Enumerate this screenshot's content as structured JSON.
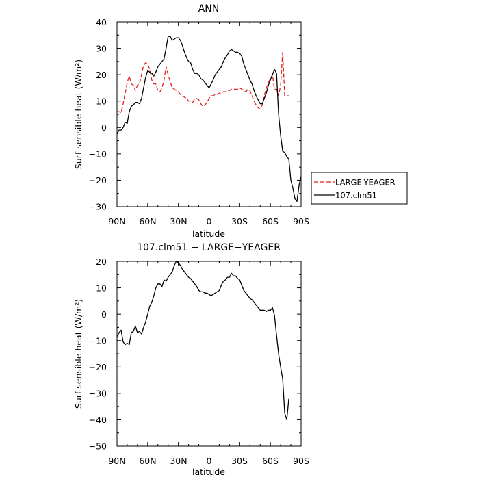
{
  "colors": {
    "large_yeager": "#e32020",
    "clm51": "#000000",
    "axis": "#000000"
  },
  "chart_data": [
    {
      "type": "line",
      "title": "ANN",
      "xlabel": "latitude",
      "ylabel": "Surf sensible heat (W/m²)",
      "xlim": [
        -90,
        90
      ],
      "ylim": [
        -30,
        40
      ],
      "x_ticks": [
        -90,
        -60,
        -30,
        0,
        30,
        60,
        90
      ],
      "x_tick_labels": [
        "90N",
        "60N",
        "30N",
        "0",
        "30S",
        "60S",
        "90S"
      ],
      "y_ticks": [
        -30,
        -20,
        -10,
        0,
        10,
        20,
        30,
        40
      ],
      "y_tick_labels": [
        "−30",
        "−20",
        "−10",
        "0",
        "10",
        "20",
        "30",
        "40"
      ],
      "legend_position": "right-middle",
      "series": [
        {
          "name": "LARGE-YEAGER",
          "style": "dashed",
          "color": "#e32020",
          "x": [
            -90,
            -88,
            -86,
            -84,
            -82,
            -80,
            -78,
            -76,
            -74,
            -72,
            -70,
            -68,
            -66,
            -64,
            -62,
            -60,
            -58,
            -56,
            -54,
            -52,
            -50,
            -48,
            -46,
            -44,
            -42,
            -40,
            -38,
            -36,
            -34,
            -32,
            -30,
            -28,
            -26,
            -24,
            -22,
            -20,
            -18,
            -16,
            -14,
            -12,
            -10,
            -8,
            -6,
            -4,
            -2,
            0,
            2,
            4,
            6,
            8,
            10,
            12,
            14,
            16,
            18,
            20,
            22,
            24,
            26,
            28,
            30,
            32,
            34,
            36,
            38,
            40,
            42,
            44,
            46,
            48,
            50,
            52,
            54,
            56,
            58,
            60,
            62,
            64,
            66,
            68,
            70,
            72,
            74,
            76,
            77,
            78
          ],
          "y": [
            6,
            6,
            5.5,
            9,
            13,
            17,
            19.5,
            16.5,
            16,
            14,
            16,
            16.5,
            20,
            23.5,
            24.5,
            24,
            22,
            18,
            16.5,
            16.5,
            14,
            13.5,
            15,
            18,
            23,
            20,
            17.5,
            15,
            14.5,
            14,
            13.5,
            12.5,
            12,
            11.5,
            11,
            10,
            10,
            9.5,
            11,
            11,
            10.5,
            9,
            8,
            8.5,
            9.5,
            11,
            12,
            12,
            12.5,
            12.5,
            13,
            13,
            13.5,
            13.5,
            14,
            14,
            14.5,
            14.5,
            14.5,
            14.5,
            15,
            14.5,
            14,
            13.5,
            14.5,
            14,
            12,
            10,
            8.5,
            7.5,
            7,
            8.5,
            12,
            15,
            17,
            18.5,
            20,
            14.5,
            14.5,
            12,
            16,
            28.5,
            12,
            12,
            12,
            12
          ]
        },
        {
          "name": "107.clm51",
          "style": "solid",
          "color": "#000000",
          "x": [
            -90,
            -88,
            -86,
            -84,
            -82,
            -80,
            -78,
            -76,
            -74,
            -72,
            -70,
            -68,
            -66,
            -64,
            -62,
            -60,
            -58,
            -56,
            -54,
            -52,
            -50,
            -48,
            -46,
            -44,
            -42,
            -40,
            -38,
            -36,
            -34,
            -32,
            -30,
            -28,
            -26,
            -24,
            -22,
            -20,
            -18,
            -16,
            -14,
            -12,
            -10,
            -8,
            -6,
            -4,
            -2,
            0,
            2,
            4,
            6,
            8,
            10,
            12,
            14,
            16,
            18,
            20,
            22,
            24,
            26,
            28,
            30,
            32,
            34,
            36,
            38,
            40,
            42,
            44,
            46,
            48,
            50,
            52,
            54,
            56,
            58,
            60,
            62,
            64,
            66,
            68,
            70,
            72,
            74,
            76,
            78,
            80,
            82,
            84,
            86,
            88,
            90
          ],
          "y": [
            -2.5,
            -1,
            -1,
            0,
            2,
            1.5,
            6,
            8,
            8.5,
            9.5,
            9.5,
            9,
            11,
            15,
            19,
            21.5,
            21,
            20.5,
            19.5,
            21,
            23,
            24,
            25,
            26,
            30,
            34.5,
            34.5,
            33,
            33.5,
            34,
            34,
            33,
            31,
            28.5,
            26.5,
            25,
            24.5,
            22,
            20.5,
            20.5,
            20,
            18.5,
            18,
            17,
            16,
            15,
            16.5,
            18,
            20,
            21,
            22,
            23,
            25,
            26.5,
            27.5,
            29,
            29.5,
            29,
            28.5,
            28.5,
            28,
            27,
            24,
            22,
            20,
            18,
            16.5,
            14,
            12,
            10.5,
            9,
            9,
            11,
            13,
            16,
            18,
            20,
            22,
            20.5,
            5,
            -3,
            -9,
            -9.5,
            -11,
            -12,
            -20,
            -23,
            -27,
            -28,
            -22,
            -18.5
          ]
        }
      ]
    },
    {
      "type": "line",
      "title": "107.clm51 − LARGE−YEAGER",
      "xlabel": "latitude",
      "ylabel": "Surf sensible heat (W/m²)",
      "xlim": [
        -90,
        90
      ],
      "ylim": [
        -50,
        20
      ],
      "x_ticks": [
        -90,
        -60,
        -30,
        0,
        30,
        60,
        90
      ],
      "x_tick_labels": [
        "90N",
        "60N",
        "30N",
        "0",
        "30S",
        "60S",
        "90S"
      ],
      "y_ticks": [
        -50,
        -40,
        -30,
        -20,
        -10,
        0,
        10,
        20
      ],
      "y_tick_labels": [
        "−50",
        "−40",
        "−30",
        "−20",
        "−10",
        "0",
        "10",
        "20"
      ],
      "series": [
        {
          "style": "solid",
          "color": "#000000",
          "x": [
            -90,
            -88,
            -86,
            -84,
            -82,
            -80,
            -78,
            -76,
            -74,
            -72,
            -70,
            -68,
            -66,
            -64,
            -62,
            -60,
            -58,
            -56,
            -54,
            -52,
            -50,
            -48,
            -46,
            -44,
            -42,
            -40,
            -38,
            -36,
            -34,
            -32,
            -30,
            -28,
            -26,
            -24,
            -22,
            -20,
            -18,
            -16,
            -14,
            -12,
            -10,
            -8,
            -6,
            -4,
            -2,
            0,
            2,
            4,
            6,
            8,
            10,
            12,
            14,
            16,
            18,
            20,
            22,
            24,
            26,
            28,
            30,
            32,
            34,
            36,
            38,
            40,
            42,
            44,
            46,
            48,
            50,
            52,
            54,
            56,
            58,
            60,
            62,
            64,
            66,
            68,
            70,
            72,
            74,
            76,
            77,
            78
          ],
          "y": [
            -8.5,
            -7,
            -6,
            -10.5,
            -11.5,
            -11,
            -11.5,
            -7,
            -6.5,
            -4.5,
            -7,
            -6.5,
            -7.5,
            -5,
            -3,
            0,
            3,
            4.5,
            7,
            10,
            11.5,
            11.5,
            10.5,
            13,
            12.5,
            14,
            15,
            16,
            18.5,
            20,
            19.5,
            18.5,
            17,
            16,
            15,
            14,
            13.5,
            12.5,
            11.5,
            10.5,
            9,
            8.5,
            8.5,
            8,
            8,
            7.5,
            7,
            7.5,
            8,
            8.5,
            9,
            11,
            12.5,
            13,
            14,
            14,
            15.5,
            14.5,
            14.5,
            13.5,
            13,
            11,
            9,
            8,
            7,
            6,
            5.5,
            4.5,
            3.5,
            2.5,
            1.5,
            1.5,
            1.5,
            1,
            1.5,
            1.5,
            2.5,
            -0.5,
            -8,
            -15,
            -20,
            -24.5,
            -37.5,
            -40,
            -36,
            -32
          ]
        }
      ]
    }
  ]
}
